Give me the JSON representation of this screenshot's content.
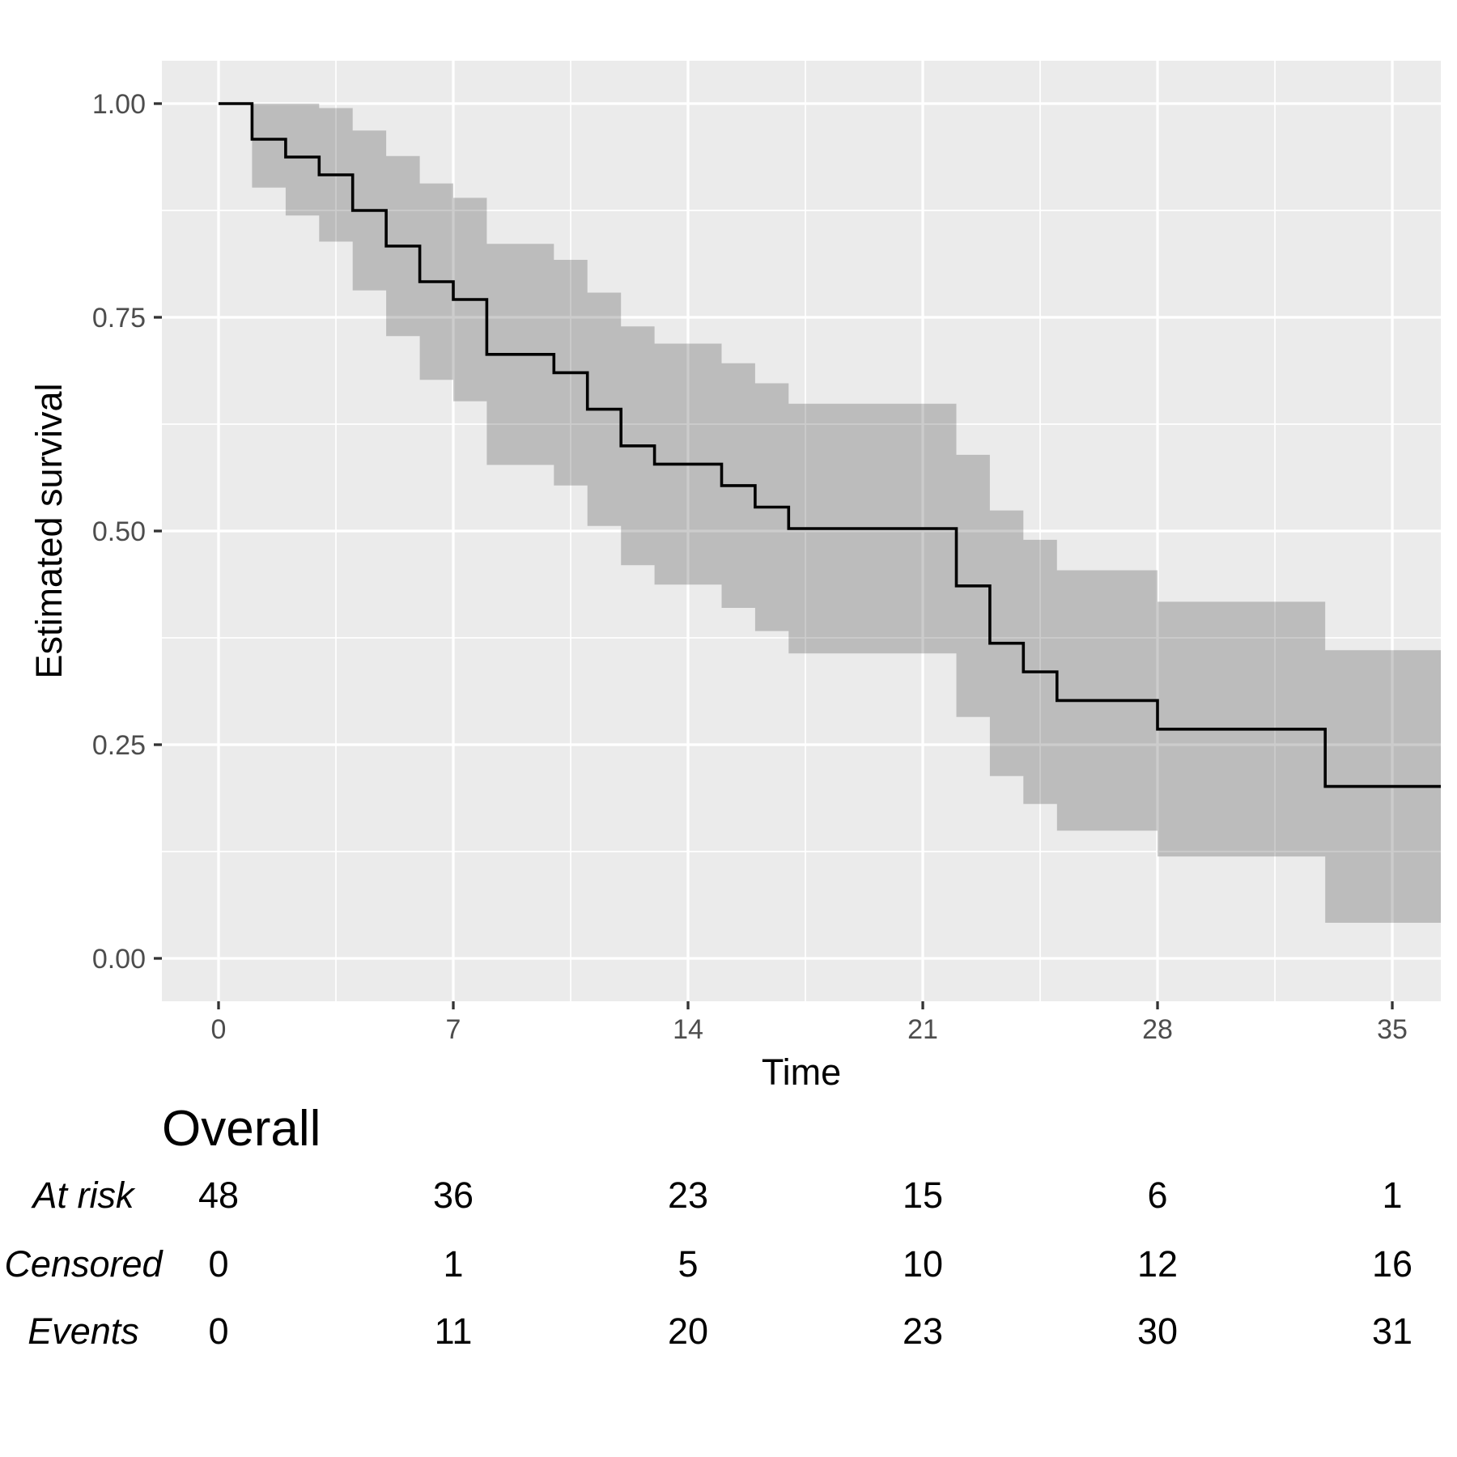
{
  "chart_data": {
    "type": "line",
    "subtype": "kaplan-meier-step-with-ci-ribbon",
    "title": "",
    "xlabel": "Time",
    "ylabel": "Estimated survival",
    "x_ticks": [
      "0",
      "7",
      "14",
      "21",
      "28",
      "35"
    ],
    "x_tick_values": [
      0,
      7,
      14,
      21,
      28,
      35
    ],
    "y_ticks": [
      "0.00",
      "0.25",
      "0.50",
      "0.75",
      "1.00"
    ],
    "y_tick_values": [
      0,
      0.25,
      0.5,
      0.75,
      1
    ],
    "x_minor": [
      3.5,
      10.5,
      17.5,
      24.5,
      31.5
    ],
    "y_minor": [
      0.125,
      0.375,
      0.625,
      0.875
    ],
    "xlim": [
      -1.7,
      36.45
    ],
    "ylim": [
      -0.05,
      1.05
    ],
    "grid": true,
    "legend": false,
    "t_max": 36.45,
    "km_steps": [
      {
        "t": 0,
        "s": 1.0,
        "lo": 1.0,
        "hi": 1.0
      },
      {
        "t": 1,
        "s": 0.9583,
        "lo": 0.9017,
        "hi": 1.0
      },
      {
        "t": 2,
        "s": 0.9375,
        "lo": 0.869,
        "hi": 1.0
      },
      {
        "t": 3,
        "s": 0.9167,
        "lo": 0.8385,
        "hi": 0.9948
      },
      {
        "t": 4,
        "s": 0.875,
        "lo": 0.7814,
        "hi": 0.9686
      },
      {
        "t": 5,
        "s": 0.8333,
        "lo": 0.7279,
        "hi": 0.9387
      },
      {
        "t": 6,
        "s": 0.7917,
        "lo": 0.6768,
        "hi": 0.9066
      },
      {
        "t": 7,
        "s": 0.7708,
        "lo": 0.6518,
        "hi": 0.8898
      },
      {
        "t": 8,
        "s": 0.7066,
        "lo": 0.5773,
        "hi": 0.8359
      },
      {
        "t": 10,
        "s": 0.6852,
        "lo": 0.5532,
        "hi": 0.8172
      },
      {
        "t": 11,
        "s": 0.6424,
        "lo": 0.5059,
        "hi": 0.7789
      },
      {
        "t": 12,
        "s": 0.5996,
        "lo": 0.4599,
        "hi": 0.7393
      },
      {
        "t": 13,
        "s": 0.5782,
        "lo": 0.4372,
        "hi": 0.7192
      },
      {
        "t": 15,
        "s": 0.5531,
        "lo": 0.41,
        "hi": 0.6962
      },
      {
        "t": 16,
        "s": 0.5279,
        "lo": 0.383,
        "hi": 0.6728
      },
      {
        "t": 17,
        "s": 0.5028,
        "lo": 0.3567,
        "hi": 0.6489
      },
      {
        "t": 22,
        "s": 0.4358,
        "lo": 0.2825,
        "hi": 0.5891
      },
      {
        "t": 23,
        "s": 0.3687,
        "lo": 0.2133,
        "hi": 0.5241
      },
      {
        "t": 24,
        "s": 0.3352,
        "lo": 0.1807,
        "hi": 0.4897
      },
      {
        "t": 25,
        "s": 0.3017,
        "lo": 0.1493,
        "hi": 0.4541
      },
      {
        "t": 28,
        "s": 0.2682,
        "lo": 0.1192,
        "hi": 0.4172
      },
      {
        "t": 33,
        "s": 0.2011,
        "lo": 0.0417,
        "hi": 0.3605
      }
    ],
    "risk_table": {
      "title": "Overall",
      "times": [
        0,
        7,
        14,
        21,
        28,
        35
      ],
      "rows": [
        {
          "label": "At risk",
          "values": [
            "48",
            "36",
            "23",
            "15",
            "6",
            "1"
          ]
        },
        {
          "label": "Censored",
          "values": [
            "0",
            "1",
            "5",
            "10",
            "12",
            "16"
          ]
        },
        {
          "label": "Events",
          "values": [
            "0",
            "11",
            "20",
            "23",
            "30",
            "31"
          ]
        }
      ]
    }
  },
  "colors": {
    "background": "#FFFFFF",
    "panel_bg": "#EBEBEB",
    "grid": "#FFFFFF",
    "ribbon": "rgba(0,0,0,0.20)",
    "curve": "#000000",
    "tick_text": "#4D4D4D",
    "tick_mark": "#333333",
    "axis_title": "#000000",
    "table_text": "#000000"
  }
}
